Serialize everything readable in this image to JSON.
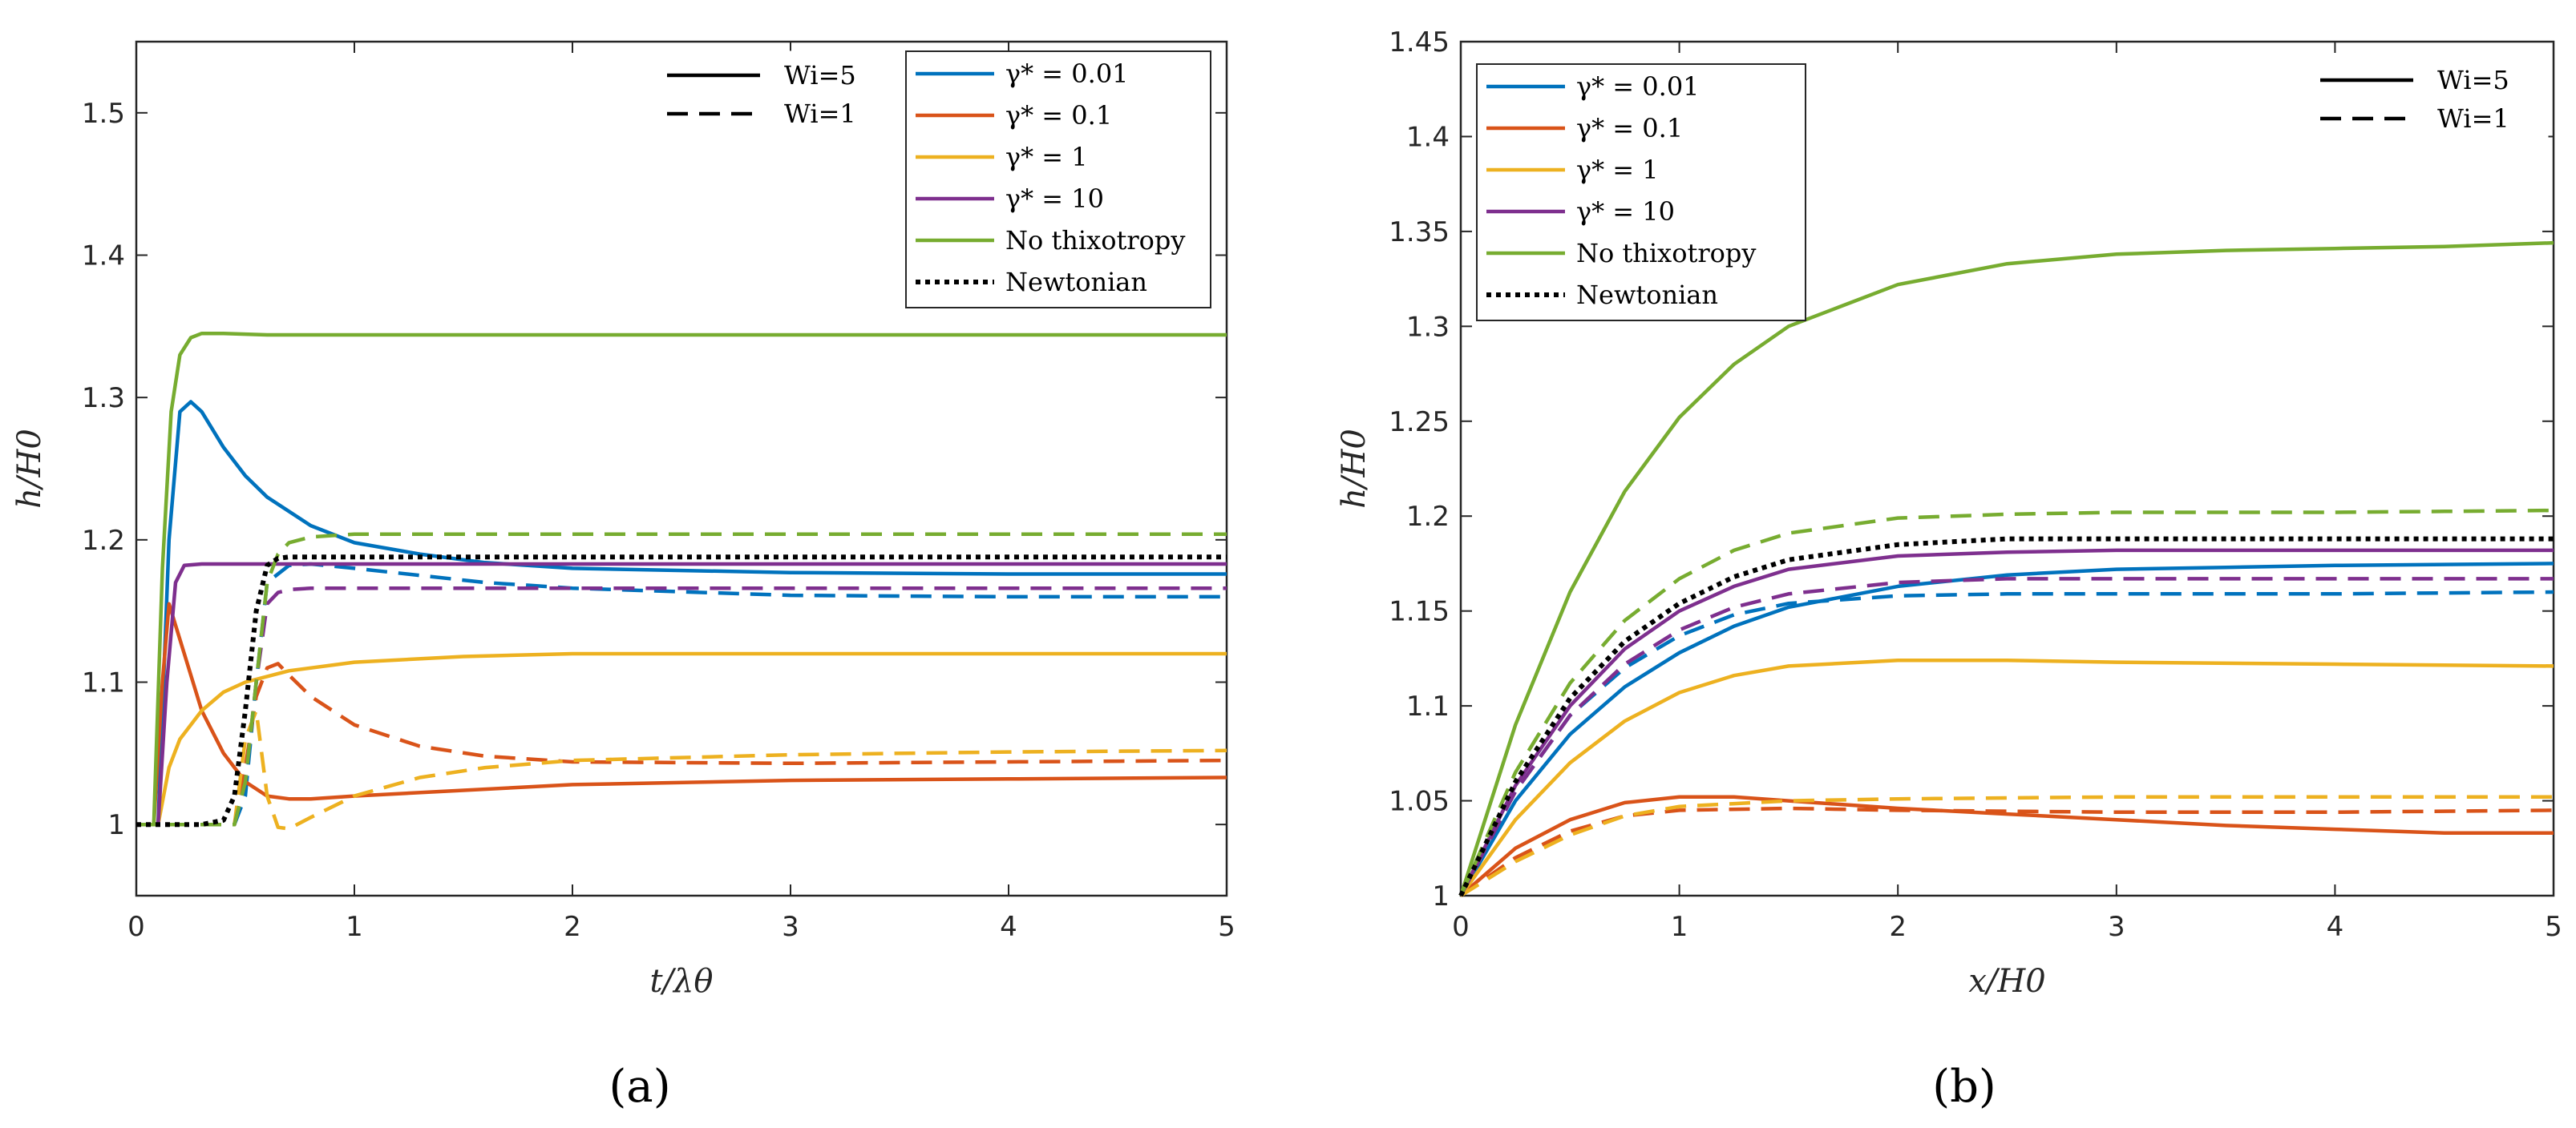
{
  "chart_data": [
    {
      "type": "line",
      "panel": "(a)",
      "xlabel": "t/λθ",
      "ylabel": "h/H0",
      "xlim": [
        0,
        5
      ],
      "ylim": [
        0.95,
        1.55
      ],
      "xticks": [
        0,
        1,
        2,
        3,
        4,
        5
      ],
      "yticks": [
        1,
        1.1,
        1.2,
        1.3,
        1.4,
        1.5
      ],
      "style_legend": [
        {
          "label": "Wi=5",
          "dash": "solid"
        },
        {
          "label": "Wi=1",
          "dash": "dashed"
        }
      ],
      "color_legend": [
        {
          "label": "γ* = 0.01",
          "color": "#0072BD"
        },
        {
          "label": "γ* = 0.1",
          "color": "#D95319"
        },
        {
          "label": "γ* = 1",
          "color": "#EDB120"
        },
        {
          "label": "γ* = 10",
          "color": "#7E2F8E"
        },
        {
          "label": "No thixotropy",
          "color": "#77AC30"
        },
        {
          "label": "Newtonian",
          "color": "#000000"
        }
      ],
      "series": [
        {
          "name": "γ* = 0.01, Wi=5",
          "color": "#0072BD",
          "dash": "solid",
          "x": [
            0,
            0.1,
            0.15,
            0.2,
            0.25,
            0.3,
            0.4,
            0.5,
            0.6,
            0.8,
            1.0,
            1.3,
            1.6,
            2.0,
            3.0,
            4.0,
            5.0
          ],
          "y": [
            1,
            1.0,
            1.2,
            1.29,
            1.297,
            1.29,
            1.265,
            1.245,
            1.23,
            1.21,
            1.198,
            1.19,
            1.184,
            1.18,
            1.177,
            1.176,
            1.176
          ]
        },
        {
          "name": "γ* = 0.01, Wi=1",
          "color": "#0072BD",
          "dash": "dashed",
          "x": [
            0,
            0.45,
            0.5,
            0.55,
            0.6,
            0.7,
            0.8,
            1.0,
            1.3,
            1.6,
            2.0,
            3.0,
            4.0,
            5.0
          ],
          "y": [
            1,
            1.0,
            1.02,
            1.1,
            1.17,
            1.182,
            1.183,
            1.18,
            1.175,
            1.17,
            1.166,
            1.161,
            1.16,
            1.16
          ]
        },
        {
          "name": "γ* = 0.1, Wi=5",
          "color": "#D95319",
          "dash": "solid",
          "x": [
            0,
            0.08,
            0.12,
            0.15,
            0.2,
            0.3,
            0.4,
            0.5,
            0.6,
            0.7,
            0.8,
            1.0,
            1.5,
            2.0,
            3.0,
            4.0,
            5.0
          ],
          "y": [
            1,
            1.0,
            1.1,
            1.155,
            1.13,
            1.08,
            1.05,
            1.03,
            1.02,
            1.018,
            1.018,
            1.02,
            1.024,
            1.028,
            1.031,
            1.032,
            1.033
          ]
        },
        {
          "name": "γ* = 0.1, Wi=1",
          "color": "#D95319",
          "dash": "dashed",
          "x": [
            0,
            0.45,
            0.5,
            0.55,
            0.6,
            0.65,
            0.7,
            0.8,
            1.0,
            1.3,
            1.6,
            2.0,
            3.0,
            4.0,
            5.0
          ],
          "y": [
            1,
            1.0,
            1.04,
            1.09,
            1.11,
            1.113,
            1.105,
            1.09,
            1.07,
            1.055,
            1.048,
            1.044,
            1.043,
            1.044,
            1.045
          ]
        },
        {
          "name": "γ* = 1, Wi=5",
          "color": "#EDB120",
          "dash": "solid",
          "x": [
            0,
            0.1,
            0.15,
            0.2,
            0.3,
            0.4,
            0.5,
            0.7,
            1.0,
            1.5,
            2.0,
            3.0,
            4.0,
            5.0
          ],
          "y": [
            1,
            1.0,
            1.04,
            1.06,
            1.08,
            1.093,
            1.1,
            1.108,
            1.114,
            1.118,
            1.12,
            1.12,
            1.12,
            1.12
          ]
        },
        {
          "name": "γ* = 1, Wi=1",
          "color": "#EDB120",
          "dash": "dashed",
          "x": [
            0,
            0.45,
            0.5,
            0.55,
            0.6,
            0.65,
            0.7,
            0.8,
            1.0,
            1.3,
            1.6,
            2.0,
            3.0,
            4.0,
            5.0
          ],
          "y": [
            1,
            1.0,
            1.06,
            1.08,
            1.02,
            0.998,
            0.997,
            1.005,
            1.02,
            1.033,
            1.04,
            1.045,
            1.049,
            1.051,
            1.052
          ]
        },
        {
          "name": "γ* = 10, Wi=5",
          "color": "#7E2F8E",
          "dash": "solid",
          "x": [
            0,
            0.1,
            0.14,
            0.18,
            0.22,
            0.3,
            1.0,
            2.0,
            3.0,
            4.0,
            5.0
          ],
          "y": [
            1,
            1.0,
            1.1,
            1.17,
            1.182,
            1.183,
            1.183,
            1.183,
            1.183,
            1.183,
            1.183
          ]
        },
        {
          "name": "γ* = 10, Wi=1",
          "color": "#7E2F8E",
          "dash": "dashed",
          "x": [
            0,
            0.45,
            0.5,
            0.55,
            0.6,
            0.65,
            0.7,
            0.8,
            1.0,
            2.0,
            3.0,
            4.0,
            5.0
          ],
          "y": [
            1,
            1.0,
            1.03,
            1.1,
            1.155,
            1.163,
            1.165,
            1.166,
            1.166,
            1.166,
            1.166,
            1.166,
            1.166
          ]
        },
        {
          "name": "No thixotropy, Wi=5",
          "color": "#77AC30",
          "dash": "solid",
          "x": [
            0,
            0.08,
            0.12,
            0.16,
            0.2,
            0.25,
            0.3,
            0.4,
            0.6,
            1.0,
            2.0,
            3.0,
            4.0,
            5.0
          ],
          "y": [
            1,
            1.0,
            1.18,
            1.29,
            1.33,
            1.342,
            1.345,
            1.345,
            1.344,
            1.344,
            1.344,
            1.344,
            1.344,
            1.344
          ]
        },
        {
          "name": "No thixotropy, Wi=1",
          "color": "#77AC30",
          "dash": "dashed",
          "x": [
            0,
            0.45,
            0.5,
            0.55,
            0.6,
            0.65,
            0.7,
            0.8,
            1.0,
            2.0,
            3.0,
            4.0,
            5.0
          ],
          "y": [
            1,
            1.0,
            1.03,
            1.1,
            1.17,
            1.19,
            1.198,
            1.202,
            1.204,
            1.204,
            1.204,
            1.204,
            1.204
          ]
        },
        {
          "name": "Newtonian",
          "color": "#000000",
          "dash": "dotted",
          "x": [
            0,
            0.3,
            0.4,
            0.45,
            0.5,
            0.55,
            0.6,
            0.65,
            0.7,
            1.0,
            2.0,
            3.0,
            4.0,
            5.0
          ],
          "y": [
            1,
            1.0,
            1.003,
            1.02,
            1.08,
            1.15,
            1.182,
            1.187,
            1.188,
            1.188,
            1.188,
            1.188,
            1.188,
            1.188
          ]
        }
      ]
    },
    {
      "type": "line",
      "panel": "(b)",
      "xlabel": "x/H0",
      "ylabel": "h/H0",
      "xlim": [
        0,
        5
      ],
      "ylim": [
        1,
        1.45
      ],
      "xticks": [
        0,
        1,
        2,
        3,
        4,
        5
      ],
      "yticks": [
        1,
        1.05,
        1.1,
        1.15,
        1.2,
        1.25,
        1.3,
        1.35,
        1.4,
        1.45
      ],
      "style_legend": [
        {
          "label": "Wi=5",
          "dash": "solid"
        },
        {
          "label": "Wi=1",
          "dash": "dashed"
        }
      ],
      "color_legend": [
        {
          "label": "γ* = 0.01",
          "color": "#0072BD"
        },
        {
          "label": "γ* = 0.1",
          "color": "#D95319"
        },
        {
          "label": "γ* = 1",
          "color": "#EDB120"
        },
        {
          "label": "γ* = 10",
          "color": "#7E2F8E"
        },
        {
          "label": "No thixotropy",
          "color": "#77AC30"
        },
        {
          "label": "Newtonian",
          "color": "#000000"
        }
      ],
      "series": [
        {
          "name": "γ* = 0.01, Wi=5",
          "color": "#0072BD",
          "dash": "solid",
          "x": [
            0,
            0.25,
            0.5,
            0.75,
            1.0,
            1.25,
            1.5,
            2.0,
            2.5,
            3.0,
            3.5,
            4.0,
            5.0
          ],
          "y": [
            1,
            1.05,
            1.085,
            1.11,
            1.128,
            1.142,
            1.152,
            1.163,
            1.169,
            1.172,
            1.173,
            1.174,
            1.175
          ]
        },
        {
          "name": "γ* = 0.01, Wi=1",
          "color": "#0072BD",
          "dash": "dashed",
          "x": [
            0,
            0.25,
            0.5,
            0.75,
            1.0,
            1.25,
            1.5,
            2.0,
            2.5,
            3.0,
            4.0,
            5.0
          ],
          "y": [
            1,
            1.055,
            1.095,
            1.12,
            1.137,
            1.148,
            1.154,
            1.158,
            1.159,
            1.159,
            1.159,
            1.16
          ]
        },
        {
          "name": "γ* = 0.1, Wi=5",
          "color": "#D95319",
          "dash": "solid",
          "x": [
            0,
            0.25,
            0.5,
            0.75,
            1.0,
            1.25,
            1.5,
            2.0,
            2.5,
            3.0,
            3.5,
            4.0,
            4.5,
            5.0
          ],
          "y": [
            1,
            1.025,
            1.04,
            1.049,
            1.052,
            1.052,
            1.05,
            1.046,
            1.043,
            1.04,
            1.037,
            1.035,
            1.033,
            1.033
          ]
        },
        {
          "name": "γ* = 0.1, Wi=1",
          "color": "#D95319",
          "dash": "dashed",
          "x": [
            0,
            0.25,
            0.5,
            0.75,
            1.0,
            1.5,
            2.0,
            3.0,
            4.0,
            5.0
          ],
          "y": [
            1,
            1.02,
            1.034,
            1.042,
            1.045,
            1.046,
            1.045,
            1.044,
            1.044,
            1.045
          ]
        },
        {
          "name": "γ* = 1, Wi=5",
          "color": "#EDB120",
          "dash": "solid",
          "x": [
            0,
            0.25,
            0.5,
            0.75,
            1.0,
            1.25,
            1.5,
            2.0,
            2.5,
            3.0,
            4.0,
            5.0
          ],
          "y": [
            1,
            1.04,
            1.07,
            1.092,
            1.107,
            1.116,
            1.121,
            1.124,
            1.124,
            1.123,
            1.122,
            1.121
          ]
        },
        {
          "name": "γ* = 1, Wi=1",
          "color": "#EDB120",
          "dash": "dashed",
          "x": [
            0,
            0.25,
            0.5,
            0.75,
            1.0,
            1.5,
            2.0,
            3.0,
            4.0,
            5.0
          ],
          "y": [
            1,
            1.018,
            1.032,
            1.042,
            1.047,
            1.05,
            1.051,
            1.052,
            1.052,
            1.052
          ]
        },
        {
          "name": "γ* = 10, Wi=5",
          "color": "#7E2F8E",
          "dash": "solid",
          "x": [
            0,
            0.25,
            0.5,
            0.75,
            1.0,
            1.25,
            1.5,
            2.0,
            2.5,
            3.0,
            4.0,
            5.0
          ],
          "y": [
            1,
            1.058,
            1.1,
            1.13,
            1.15,
            1.163,
            1.172,
            1.179,
            1.181,
            1.182,
            1.182,
            1.182
          ]
        },
        {
          "name": "γ* = 10, Wi=1",
          "color": "#7E2F8E",
          "dash": "dashed",
          "x": [
            0,
            0.25,
            0.5,
            0.75,
            1.0,
            1.25,
            1.5,
            2.0,
            2.5,
            3.0,
            4.0,
            5.0
          ],
          "y": [
            1,
            1.055,
            1.095,
            1.122,
            1.14,
            1.152,
            1.159,
            1.165,
            1.167,
            1.167,
            1.167,
            1.167
          ]
        },
        {
          "name": "No thixotropy, Wi=5",
          "color": "#77AC30",
          "dash": "solid",
          "x": [
            0,
            0.25,
            0.5,
            0.75,
            1.0,
            1.25,
            1.5,
            2.0,
            2.5,
            3.0,
            3.5,
            4.0,
            4.5,
            5.0
          ],
          "y": [
            1,
            1.09,
            1.16,
            1.213,
            1.252,
            1.28,
            1.3,
            1.322,
            1.333,
            1.338,
            1.34,
            1.341,
            1.342,
            1.344
          ]
        },
        {
          "name": "No thixotropy, Wi=1",
          "color": "#77AC30",
          "dash": "dashed",
          "x": [
            0,
            0.25,
            0.5,
            0.75,
            1.0,
            1.25,
            1.5,
            2.0,
            2.5,
            3.0,
            4.0,
            5.0
          ],
          "y": [
            1,
            1.065,
            1.112,
            1.145,
            1.167,
            1.182,
            1.191,
            1.199,
            1.201,
            1.202,
            1.202,
            1.203
          ]
        },
        {
          "name": "Newtonian",
          "color": "#000000",
          "dash": "dotted",
          "x": [
            0,
            0.25,
            0.5,
            0.75,
            1.0,
            1.25,
            1.5,
            2.0,
            2.5,
            3.0,
            4.0,
            5.0
          ],
          "y": [
            1,
            1.06,
            1.104,
            1.134,
            1.154,
            1.168,
            1.177,
            1.185,
            1.188,
            1.188,
            1.188,
            1.188
          ]
        }
      ]
    }
  ]
}
